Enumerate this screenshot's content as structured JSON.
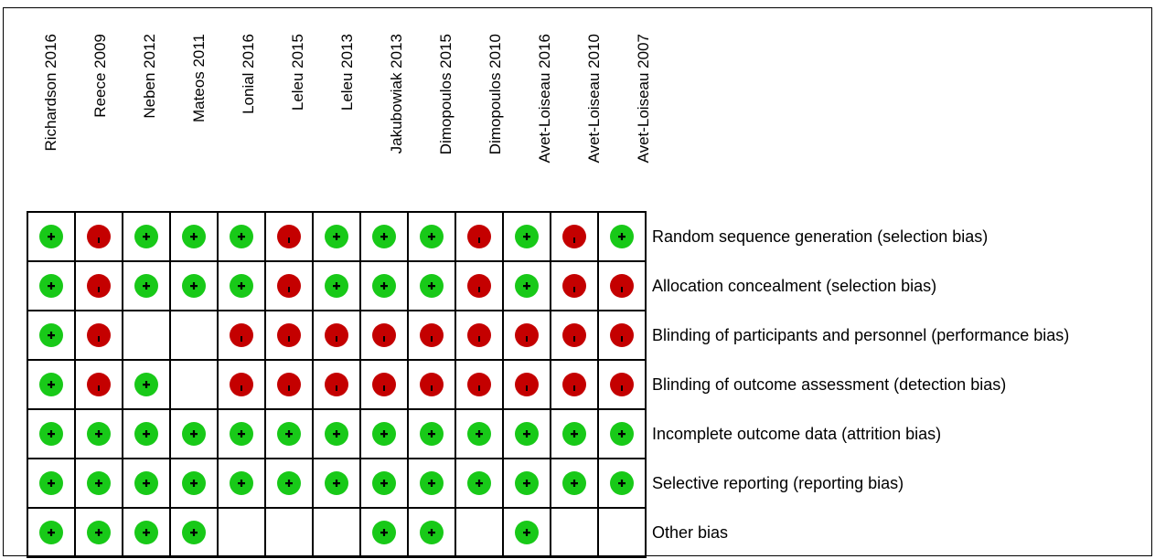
{
  "studies": [
    "Richardson 2016",
    "Reece 2009",
    "Neben 2012",
    "Mateos 2011",
    "Lonial 2016",
    "Leleu 2015",
    "Leleu 2013",
    "Jakubowiak 2013",
    "Dimopoulos 2015",
    "Dimopoulos 2010",
    "Avet-Loiseau 2016",
    "Avet-Loiseau 2010",
    "Avet-Loiseau 2007"
  ],
  "domains": [
    "Random sequence generation (selection bias)",
    "Allocation concealment (selection bias)",
    "Blinding of participants and personnel (performance bias)",
    "Blinding of outcome assessment (detection bias)",
    "Incomplete outcome data (attrition bias)",
    "Selective reporting (reporting bias)",
    "Other bias"
  ],
  "judgements": [
    [
      "+",
      "-",
      "+",
      "+",
      "+",
      "-",
      "+",
      "+",
      "+",
      "-",
      "+",
      "-",
      "+"
    ],
    [
      "+",
      "-",
      "+",
      "+",
      "+",
      "-",
      "+",
      "+",
      "+",
      "-",
      "+",
      "-",
      "-"
    ],
    [
      "+",
      "-",
      "",
      "",
      "-",
      "-",
      "-",
      "-",
      "-",
      "-",
      "-",
      "-",
      "-"
    ],
    [
      "+",
      "-",
      "+",
      "",
      "-",
      "-",
      "-",
      "-",
      "-",
      "-",
      "-",
      "-",
      "-"
    ],
    [
      "+",
      "+",
      "+",
      "+",
      "+",
      "+",
      "+",
      "+",
      "+",
      "+",
      "+",
      "+",
      "+"
    ],
    [
      "+",
      "+",
      "+",
      "+",
      "+",
      "+",
      "+",
      "+",
      "+",
      "+",
      "+",
      "+",
      "+"
    ],
    [
      "+",
      "+",
      "+",
      "+",
      "",
      "",
      "",
      "+",
      "+",
      "",
      "+",
      "",
      ""
    ]
  ],
  "colors": {
    "low": "#18c918",
    "high": "#c40000"
  },
  "icons": {
    "low": "plus-icon",
    "high": "minus-icon"
  }
}
